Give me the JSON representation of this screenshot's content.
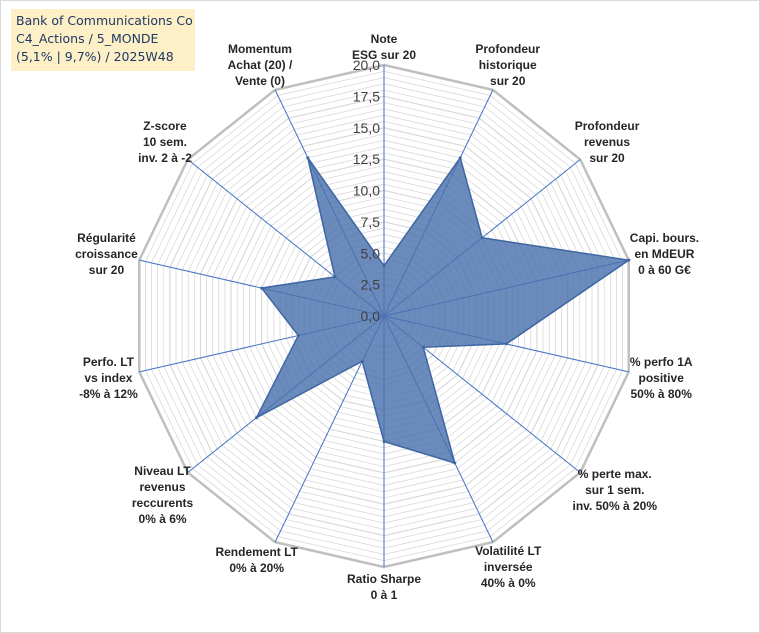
{
  "info_box": {
    "line1": "Bank of Communications Co",
    "line2": "C4_Actions / 5_MONDE",
    "line3": "(5,1% | 9,7%) / 2025W48"
  },
  "colors": {
    "fill": "#4a72ae",
    "stroke": "#3d66a3",
    "spokes": "#4472c4",
    "grid": "#d9d9d9",
    "outer_ring": "#bfbfbf"
  },
  "chart_data": {
    "type": "radar",
    "range": [
      0,
      20
    ],
    "ticks": [
      "0,0",
      "2,5",
      "5,0",
      "7,5",
      "10,0",
      "12,5",
      "15,0",
      "17,5",
      "20,0"
    ],
    "axes": [
      {
        "lines": [
          "Note",
          "ESG sur 20"
        ],
        "value": 4.0
      },
      {
        "lines": [
          "Profondeur",
          "historique",
          "sur 20"
        ],
        "value": 14.0
      },
      {
        "lines": [
          "Profondeur",
          "revenus",
          "sur 20"
        ],
        "value": 10.0
      },
      {
        "lines": [
          "Capi. bours.",
          "en MdEUR",
          "0 à 60 G€"
        ],
        "value": 20.0
      },
      {
        "lines": [
          "% perfo 1A",
          "positive",
          "50% à 80%"
        ],
        "value": 10.0
      },
      {
        "lines": [
          "% perte max.",
          "sur 1 sem.",
          "inv. 50% à 20%"
        ],
        "value": 4.0
      },
      {
        "lines": [
          "Volatilité LT",
          "inversée",
          "40% à 0%"
        ],
        "value": 13.0
      },
      {
        "lines": [
          "Ratio Sharpe",
          "0 à 1"
        ],
        "value": 10.0
      },
      {
        "lines": [
          "Rendement LT",
          "0% à 20%"
        ],
        "value": 4.0
      },
      {
        "lines": [
          "Niveau LT",
          "revenus",
          "reccurents",
          "0% à 6%"
        ],
        "value": 13.0
      },
      {
        "lines": [
          "Perfo. LT",
          "vs index",
          "-8% à 12%"
        ],
        "value": 7.0
      },
      {
        "lines": [
          "Régularité",
          "croissance",
          "sur 20"
        ],
        "value": 10.0
      },
      {
        "lines": [
          "Z-score",
          "10 sem.",
          "inv. 2 à -2"
        ],
        "value": 5.0
      },
      {
        "lines": [
          "Momentum",
          "Achat (20) /",
          "Vente (0)"
        ],
        "value": 14.0
      }
    ]
  }
}
